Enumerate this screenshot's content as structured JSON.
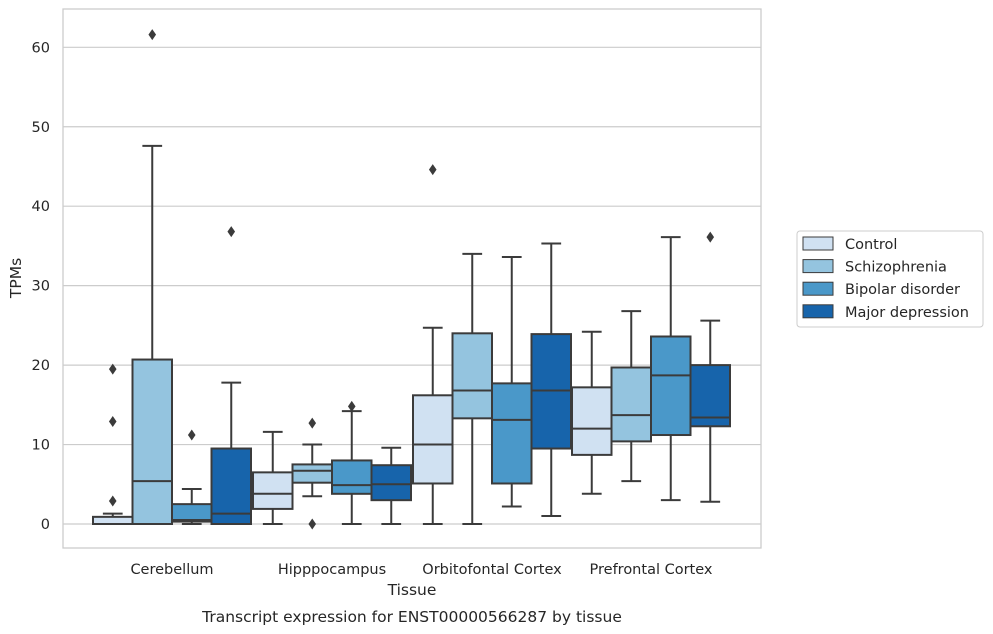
{
  "chart_data": {
    "type": "boxplot",
    "title": "",
    "caption": "Transcript expression for ENST00000566287 by tissue",
    "xlabel": "Tissue",
    "ylabel": "TPMs",
    "ylim": [
      -3,
      65
    ],
    "yticks": [
      0,
      10,
      20,
      30,
      40,
      50,
      60
    ],
    "grid": "horizontal",
    "legend_position": "right",
    "categories": [
      "Cerebellum",
      "Hipppocampus",
      "Orbitofontal Cortex",
      "Prefrontal Cortex"
    ],
    "series": [
      {
        "name": "Control",
        "color": "#d0e1f2",
        "boxes": [
          {
            "whisker_low": 0,
            "q1": 0,
            "median": 0,
            "q3": 0.9,
            "whisker_high": 1.3,
            "outliers": [
              2.9,
              12.9,
              19.5
            ]
          },
          {
            "whisker_low": 0,
            "q1": 1.9,
            "median": 3.8,
            "q3": 6.5,
            "whisker_high": 11.6,
            "outliers": []
          },
          {
            "whisker_low": 0,
            "q1": 5.1,
            "median": 10.0,
            "q3": 16.2,
            "whisker_high": 24.7,
            "outliers": [
              44.6
            ]
          },
          {
            "whisker_low": 3.8,
            "q1": 8.7,
            "median": 12.0,
            "q3": 17.2,
            "whisker_high": 24.2,
            "outliers": []
          }
        ]
      },
      {
        "name": "Schizophrenia",
        "color": "#94c4df",
        "boxes": [
          {
            "whisker_low": 0,
            "q1": 0,
            "median": 5.4,
            "q3": 20.7,
            "whisker_high": 47.6,
            "outliers": [
              61.6
            ]
          },
          {
            "whisker_low": 3.5,
            "q1": 5.2,
            "median": 6.7,
            "q3": 7.5,
            "whisker_high": 10.0,
            "outliers": [
              0,
              12.7
            ]
          },
          {
            "whisker_low": 0,
            "q1": 13.3,
            "median": 16.8,
            "q3": 24.0,
            "whisker_high": 34.0,
            "outliers": []
          },
          {
            "whisker_low": 5.4,
            "q1": 10.4,
            "median": 13.7,
            "q3": 19.7,
            "whisker_high": 26.8,
            "outliers": []
          }
        ]
      },
      {
        "name": "Bipolar disorder",
        "color": "#4a98c9",
        "boxes": [
          {
            "whisker_low": 0,
            "q1": 0.3,
            "median": 0.5,
            "q3": 2.5,
            "whisker_high": 4.4,
            "outliers": [
              11.2
            ]
          },
          {
            "whisker_low": 0,
            "q1": 3.8,
            "median": 4.9,
            "q3": 8.0,
            "whisker_high": 14.2,
            "outliers": [
              14.8
            ]
          },
          {
            "whisker_low": 2.2,
            "q1": 5.1,
            "median": 13.1,
            "q3": 17.7,
            "whisker_high": 33.6,
            "outliers": []
          },
          {
            "whisker_low": 3.0,
            "q1": 11.2,
            "median": 18.7,
            "q3": 23.6,
            "whisker_high": 36.1,
            "outliers": []
          }
        ]
      },
      {
        "name": "Major depression",
        "color": "#1764ab",
        "boxes": [
          {
            "whisker_low": 0,
            "q1": 0,
            "median": 1.3,
            "q3": 9.5,
            "whisker_high": 17.8,
            "outliers": [
              36.8
            ]
          },
          {
            "whisker_low": 0,
            "q1": 3.0,
            "median": 5.0,
            "q3": 7.4,
            "whisker_high": 9.6,
            "outliers": []
          },
          {
            "whisker_low": 1.0,
            "q1": 9.5,
            "median": 16.8,
            "q3": 23.9,
            "whisker_high": 35.3,
            "outliers": []
          },
          {
            "whisker_low": 2.8,
            "q1": 12.3,
            "median": 13.4,
            "q3": 20.0,
            "whisker_high": 25.6,
            "outliers": [
              36.1
            ]
          }
        ]
      }
    ]
  },
  "colors": {
    "edge": "#3b3b3b",
    "grid": "#cccccc",
    "frame": "#cccccc"
  }
}
